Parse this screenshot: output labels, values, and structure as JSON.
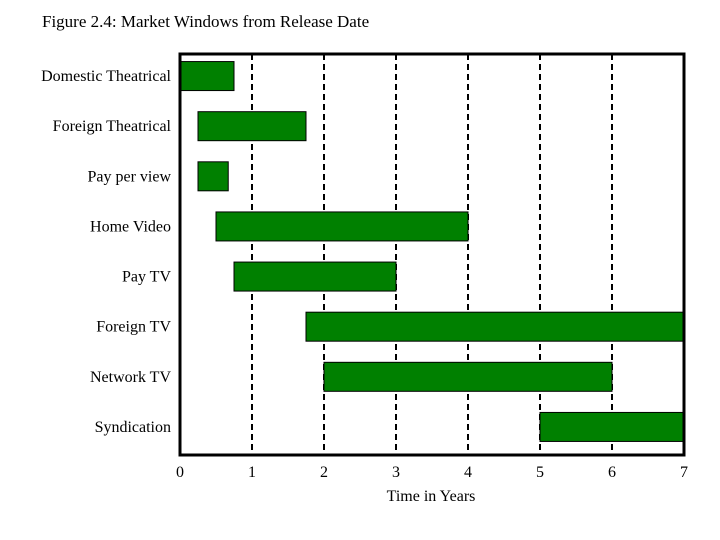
{
  "figure": {
    "title": "Figure 2.4:  Market Windows from Release Date"
  },
  "chart_data": {
    "type": "bar",
    "orientation": "horizontal-range",
    "title": "Figure 2.4:  Market Windows from Release Date",
    "xlabel": "Time in Years",
    "ylabel": "",
    "xlim": [
      0,
      7
    ],
    "xticks": [
      "0",
      "1",
      "2",
      "3",
      "4",
      "5",
      "6",
      "7"
    ],
    "grid": "vertical-dashed",
    "legend": "none",
    "categories": [
      "Domestic Theatrical",
      "Foreign Theatrical",
      "Pay per view",
      "Home Video",
      "Pay TV",
      "Foreign TV",
      "Network TV",
      "Syndication"
    ],
    "ranges": [
      [
        0,
        0.75
      ],
      [
        0.25,
        1.75
      ],
      [
        0.25,
        0.67
      ],
      [
        0.5,
        4
      ],
      [
        0.75,
        3
      ],
      [
        1.75,
        7
      ],
      [
        2,
        6
      ],
      [
        5,
        7
      ]
    ],
    "colors": {
      "bar": "#008000",
      "bar_border": "#000000",
      "grid": "#000000"
    }
  }
}
